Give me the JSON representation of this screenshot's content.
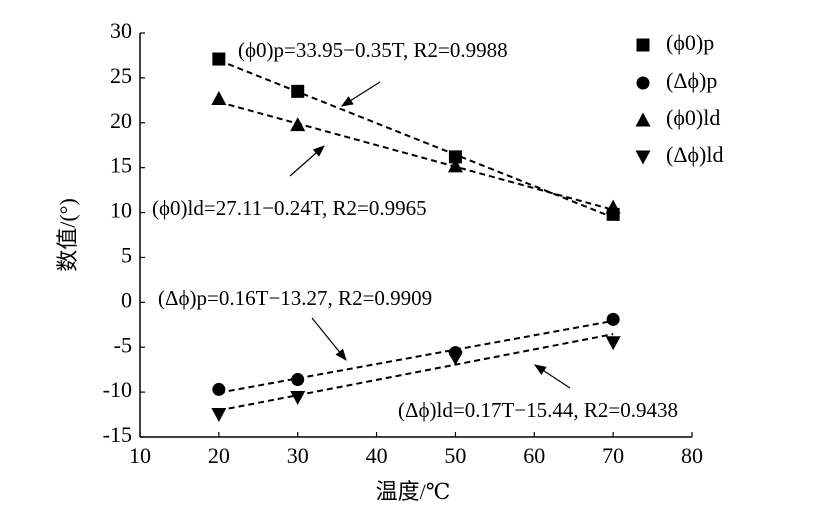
{
  "chart_data": {
    "type": "scatter",
    "x_label": "温度/℃",
    "y_label": "数值/(°)",
    "xlim": [
      10,
      80
    ],
    "xticks": [
      10,
      20,
      30,
      40,
      50,
      60,
      70,
      80
    ],
    "ylim": [
      -15,
      30
    ],
    "yticks": [
      -15,
      -10,
      -5,
      0,
      5,
      10,
      15,
      20,
      25,
      30
    ],
    "grid": false,
    "legend": "upper right",
    "series": [
      {
        "name": "(ϕ0)p",
        "color": "#000000",
        "marker": "square",
        "x": [
          20,
          30,
          50,
          70
        ],
        "values": [
          27.1,
          23.5,
          16.2,
          9.8
        ],
        "fit": {
          "label": "(ϕ0)p=33.95−0.35T, R2=0.9988",
          "intercept": 33.95,
          "slope": -0.35
        }
      },
      {
        "name": "(Δϕ)p",
        "color": "#000000",
        "marker": "circle",
        "x": [
          20,
          30,
          50,
          70
        ],
        "values": [
          -9.7,
          -8.6,
          -5.6,
          -1.9
        ],
        "fit": {
          "label": "(Δϕ)p=0.16T−13.27, R2=0.9909",
          "intercept": -13.27,
          "slope": 0.16
        }
      },
      {
        "name": "(ϕ0)ld",
        "color": "#000000",
        "marker": "triangle-up",
        "x": [
          20,
          30,
          50,
          70
        ],
        "values": [
          22.7,
          19.8,
          15.2,
          10.6
        ],
        "fit": {
          "label": "(ϕ0)ld=27.11−0.24T, R2=0.9965",
          "intercept": 27.11,
          "slope": -0.24
        }
      },
      {
        "name": "(Δϕ)ld",
        "color": "#000000",
        "marker": "triangle-down",
        "x": [
          20,
          30,
          50,
          70
        ],
        "values": [
          -12.5,
          -10.6,
          -6.2,
          -4.5
        ],
        "fit": {
          "label": "(Δϕ)ld=0.17T−15.44, R2=0.9438",
          "intercept": -15.44,
          "slope": 0.17
        }
      }
    ]
  }
}
